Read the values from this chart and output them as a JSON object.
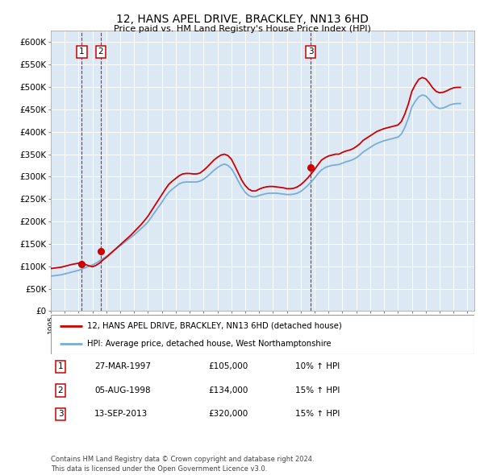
{
  "title": "12, HANS APEL DRIVE, BRACKLEY, NN13 6HD",
  "subtitle": "Price paid vs. HM Land Registry's House Price Index (HPI)",
  "xlim_start": 1995.0,
  "xlim_end": 2025.5,
  "ylim": [
    0,
    625000
  ],
  "yticks": [
    0,
    50000,
    100000,
    150000,
    200000,
    250000,
    300000,
    350000,
    400000,
    450000,
    500000,
    550000,
    600000
  ],
  "ytick_labels": [
    "£0",
    "£50K",
    "£100K",
    "£150K",
    "£200K",
    "£250K",
    "£300K",
    "£350K",
    "£400K",
    "£450K",
    "£500K",
    "£550K",
    "£600K"
  ],
  "sale_dates_year": [
    1997.23,
    1998.59,
    2013.71
  ],
  "sale_prices": [
    105000,
    134000,
    320000
  ],
  "sale_labels": [
    "1",
    "2",
    "3"
  ],
  "vline_color": "#cc0000",
  "dot_color": "#cc0000",
  "red_line_color": "#cc0000",
  "blue_line_color": "#7aadd4",
  "background_color": "#dce9f5",
  "legend_line1": "12, HANS APEL DRIVE, BRACKLEY, NN13 6HD (detached house)",
  "legend_line2": "HPI: Average price, detached house, West Northamptonshire",
  "table_data": [
    [
      "1",
      "27-MAR-1997",
      "£105,000",
      "10% ↑ HPI"
    ],
    [
      "2",
      "05-AUG-1998",
      "£134,000",
      "15% ↑ HPI"
    ],
    [
      "3",
      "13-SEP-2013",
      "£320,000",
      "15% ↑ HPI"
    ]
  ],
  "footer": "Contains HM Land Registry data © Crown copyright and database right 2024.\nThis data is licensed under the Open Government Licence v3.0.",
  "hpi_years": [
    1995.0,
    1995.25,
    1995.5,
    1995.75,
    1996.0,
    1996.25,
    1996.5,
    1996.75,
    1997.0,
    1997.25,
    1997.5,
    1997.75,
    1998.0,
    1998.25,
    1998.5,
    1998.75,
    1999.0,
    1999.25,
    1999.5,
    1999.75,
    2000.0,
    2000.25,
    2000.5,
    2000.75,
    2001.0,
    2001.25,
    2001.5,
    2001.75,
    2002.0,
    2002.25,
    2002.5,
    2002.75,
    2003.0,
    2003.25,
    2003.5,
    2003.75,
    2004.0,
    2004.25,
    2004.5,
    2004.75,
    2005.0,
    2005.25,
    2005.5,
    2005.75,
    2006.0,
    2006.25,
    2006.5,
    2006.75,
    2007.0,
    2007.25,
    2007.5,
    2007.75,
    2008.0,
    2008.25,
    2008.5,
    2008.75,
    2009.0,
    2009.25,
    2009.5,
    2009.75,
    2010.0,
    2010.25,
    2010.5,
    2010.75,
    2011.0,
    2011.25,
    2011.5,
    2011.75,
    2012.0,
    2012.25,
    2012.5,
    2012.75,
    2013.0,
    2013.25,
    2013.5,
    2013.75,
    2014.0,
    2014.25,
    2014.5,
    2014.75,
    2015.0,
    2015.25,
    2015.5,
    2015.75,
    2016.0,
    2016.25,
    2016.5,
    2016.75,
    2017.0,
    2017.25,
    2017.5,
    2017.75,
    2018.0,
    2018.25,
    2018.5,
    2018.75,
    2019.0,
    2019.25,
    2019.5,
    2019.75,
    2020.0,
    2020.25,
    2020.5,
    2020.75,
    2021.0,
    2021.25,
    2021.5,
    2021.75,
    2022.0,
    2022.25,
    2022.5,
    2022.75,
    2023.0,
    2023.25,
    2023.5,
    2023.75,
    2024.0,
    2024.25,
    2024.5
  ],
  "hpi_values": [
    78000,
    79000,
    80000,
    81000,
    83000,
    85000,
    87000,
    89000,
    91000,
    94000,
    97000,
    100000,
    103000,
    107000,
    112000,
    117000,
    122000,
    128000,
    134000,
    140000,
    146000,
    152000,
    158000,
    164000,
    170000,
    177000,
    184000,
    191000,
    199000,
    210000,
    221000,
    232000,
    243000,
    255000,
    265000,
    272000,
    278000,
    284000,
    287000,
    288000,
    288000,
    288000,
    288000,
    290000,
    294000,
    300000,
    307000,
    314000,
    320000,
    325000,
    328000,
    325000,
    318000,
    305000,
    290000,
    276000,
    265000,
    258000,
    255000,
    255000,
    258000,
    260000,
    262000,
    263000,
    263000,
    263000,
    262000,
    261000,
    260000,
    260000,
    261000,
    263000,
    267000,
    273000,
    280000,
    288000,
    297000,
    307000,
    315000,
    320000,
    323000,
    325000,
    326000,
    327000,
    330000,
    333000,
    335000,
    338000,
    342000,
    348000,
    355000,
    360000,
    365000,
    370000,
    374000,
    377000,
    380000,
    382000,
    384000,
    386000,
    388000,
    395000,
    410000,
    430000,
    455000,
    468000,
    478000,
    482000,
    480000,
    472000,
    462000,
    455000,
    452000,
    453000,
    456000,
    460000,
    462000,
    463000,
    463000
  ],
  "red_line_years": [
    1995.0,
    1995.25,
    1995.5,
    1995.75,
    1996.0,
    1996.25,
    1996.5,
    1996.75,
    1997.0,
    1997.25,
    1997.5,
    1997.75,
    1998.0,
    1998.25,
    1998.5,
    1998.75,
    1999.0,
    1999.25,
    1999.5,
    1999.75,
    2000.0,
    2000.25,
    2000.5,
    2000.75,
    2001.0,
    2001.25,
    2001.5,
    2001.75,
    2002.0,
    2002.25,
    2002.5,
    2002.75,
    2003.0,
    2003.25,
    2003.5,
    2003.75,
    2004.0,
    2004.25,
    2004.5,
    2004.75,
    2005.0,
    2005.25,
    2005.5,
    2005.75,
    2006.0,
    2006.25,
    2006.5,
    2006.75,
    2007.0,
    2007.25,
    2007.5,
    2007.75,
    2008.0,
    2008.25,
    2008.5,
    2008.75,
    2009.0,
    2009.25,
    2009.5,
    2009.75,
    2010.0,
    2010.25,
    2010.5,
    2010.75,
    2011.0,
    2011.25,
    2011.5,
    2011.75,
    2012.0,
    2012.25,
    2012.5,
    2012.75,
    2013.0,
    2013.25,
    2013.5,
    2013.75,
    2014.0,
    2014.25,
    2014.5,
    2014.75,
    2015.0,
    2015.25,
    2015.5,
    2015.75,
    2016.0,
    2016.25,
    2016.5,
    2016.75,
    2017.0,
    2017.25,
    2017.5,
    2017.75,
    2018.0,
    2018.25,
    2018.5,
    2018.75,
    2019.0,
    2019.25,
    2019.5,
    2019.75,
    2020.0,
    2020.25,
    2020.5,
    2020.75,
    2021.0,
    2021.25,
    2021.5,
    2021.75,
    2022.0,
    2022.25,
    2022.5,
    2022.75,
    2023.0,
    2023.25,
    2023.5,
    2023.75,
    2024.0,
    2024.25,
    2024.5
  ],
  "red_line_values": [
    95000,
    96000,
    97000,
    98000,
    100000,
    102000,
    104000,
    105500,
    107000,
    110000,
    104000,
    101000,
    99000,
    102000,
    107000,
    114000,
    120000,
    127000,
    134000,
    141000,
    148000,
    155000,
    162000,
    169000,
    177000,
    185000,
    193000,
    202000,
    212000,
    224000,
    236000,
    248000,
    260000,
    272000,
    283000,
    290000,
    296000,
    302000,
    306000,
    307000,
    307000,
    306000,
    306000,
    308000,
    314000,
    321000,
    329000,
    337000,
    343000,
    348000,
    350000,
    347000,
    339000,
    324000,
    308000,
    292000,
    280000,
    272000,
    268000,
    268000,
    272000,
    275000,
    277000,
    278000,
    278000,
    277000,
    276000,
    275000,
    273000,
    273000,
    274000,
    277000,
    282000,
    289000,
    297000,
    306000,
    316000,
    327000,
    337000,
    342000,
    346000,
    348000,
    350000,
    350000,
    354000,
    357000,
    359000,
    362000,
    367000,
    373000,
    381000,
    386000,
    391000,
    396000,
    401000,
    404000,
    407000,
    409000,
    411000,
    413000,
    415000,
    423000,
    440000,
    462000,
    490000,
    505000,
    517000,
    521000,
    518000,
    509000,
    498000,
    490000,
    487000,
    488000,
    491000,
    495000,
    498000,
    499000,
    499000
  ]
}
